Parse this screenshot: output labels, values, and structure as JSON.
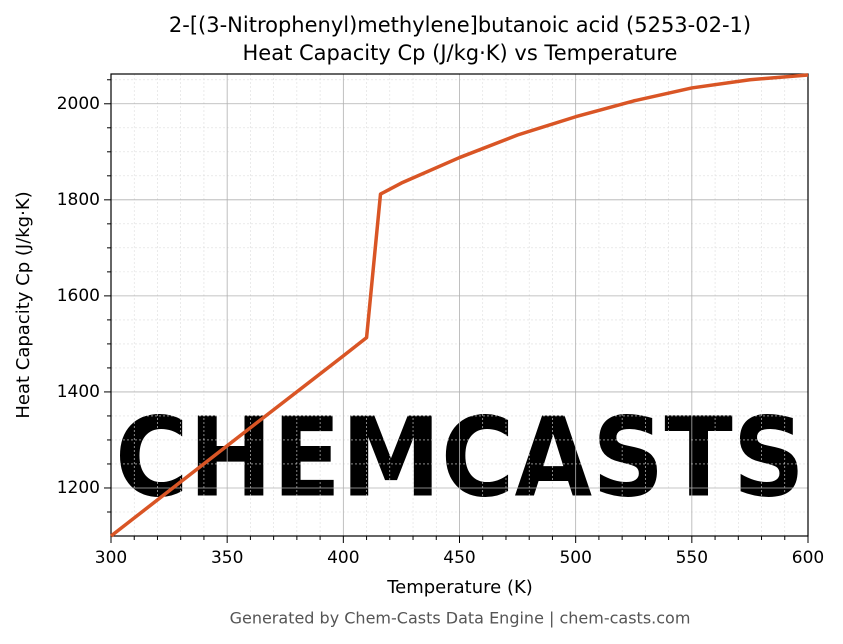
{
  "chart_data": {
    "type": "line",
    "title": "2-[(3-Nitrophenyl)methylene]butanoic acid (5253-02-1)",
    "subtitle": "Heat Capacity Cp (J/kg·K) vs Temperature",
    "x_label": "Temperature (K)",
    "y_label": "Heat Capacity Cp (J/kg·K)",
    "footer": "Generated by Chem-Casts Data Engine | chem-casts.com",
    "watermark": "CHEMCASTS",
    "x": [
      300,
      350,
      400,
      410,
      416,
      425,
      450,
      475,
      500,
      525,
      550,
      575,
      600
    ],
    "series": [
      {
        "name": "Cp",
        "color": "#d95525",
        "values": [
          1100,
          1288,
          1475,
          1513,
          1812,
          1835,
          1888,
          1935,
          1973,
          2006,
          2033,
          2050,
          2060
        ]
      }
    ],
    "xlim": [
      300,
      600
    ],
    "ylim": [
      1100,
      2062
    ],
    "xticks": [
      300,
      350,
      400,
      450,
      500,
      550,
      600
    ],
    "yticks": [
      1200,
      1400,
      1600,
      1800,
      2000
    ],
    "xminorticks": [
      310,
      320,
      330,
      340,
      360,
      370,
      380,
      390,
      410,
      420,
      430,
      440,
      460,
      470,
      480,
      490,
      510,
      520,
      530,
      540,
      560,
      570,
      580,
      590
    ],
    "yminorticks": [
      1150,
      1250,
      1300,
      1350,
      1450,
      1500,
      1550,
      1650,
      1700,
      1750,
      1850,
      1900,
      1950,
      2050
    ],
    "grid": true
  }
}
